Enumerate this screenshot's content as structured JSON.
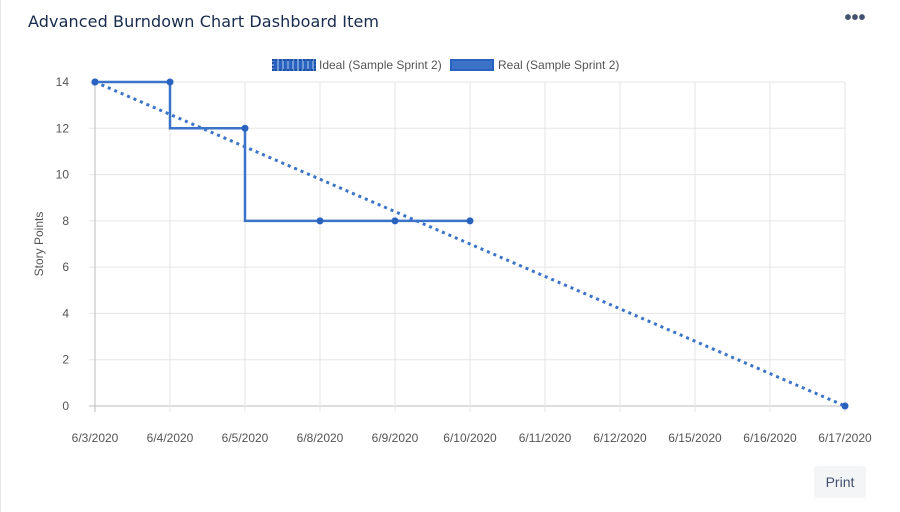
{
  "header": {
    "title": "Advanced Burndown Chart Dashboard Item",
    "more_icon": "more-horizontal-icon",
    "more_glyph": "•••"
  },
  "footer": {
    "print_label": "Print"
  },
  "colors": {
    "series": "#3b73c9",
    "series_dark": "#2a62c0",
    "grid": "#e5e5e5",
    "axis_text": "#555555"
  },
  "chart_data": {
    "type": "line",
    "title": "",
    "xlabel": "",
    "ylabel": "Story Points",
    "categories": [
      "6/3/2020",
      "6/4/2020",
      "6/5/2020",
      "6/8/2020",
      "6/9/2020",
      "6/10/2020",
      "6/11/2020",
      "6/12/2020",
      "6/15/2020",
      "6/16/2020",
      "6/17/2020"
    ],
    "ylim": [
      0,
      14
    ],
    "yticks": [
      0,
      2,
      4,
      6,
      8,
      10,
      12,
      14
    ],
    "grid": true,
    "legend_position": "top-center",
    "series": [
      {
        "name": "Ideal (Sample Sprint 2)",
        "style": "dotted",
        "points": [
          {
            "x": "6/3/2020",
            "y": 14
          },
          {
            "x": "6/17/2020",
            "y": 0
          }
        ]
      },
      {
        "name": "Real (Sample Sprint 2)",
        "style": "solid-step",
        "points": [
          {
            "x": "6/3/2020",
            "y": 14
          },
          {
            "x": "6/4/2020",
            "y": 14
          },
          {
            "x": "6/4/2020",
            "y": 12
          },
          {
            "x": "6/5/2020",
            "y": 12
          },
          {
            "x": "6/5/2020",
            "y": 8
          },
          {
            "x": "6/8/2020",
            "y": 8
          },
          {
            "x": "6/9/2020",
            "y": 8
          },
          {
            "x": "6/10/2020",
            "y": 8
          }
        ],
        "markers": [
          {
            "x": "6/3/2020",
            "y": 14
          },
          {
            "x": "6/4/2020",
            "y": 14
          },
          {
            "x": "6/5/2020",
            "y": 12
          },
          {
            "x": "6/8/2020",
            "y": 8
          },
          {
            "x": "6/9/2020",
            "y": 8
          },
          {
            "x": "6/10/2020",
            "y": 8
          }
        ]
      }
    ]
  }
}
